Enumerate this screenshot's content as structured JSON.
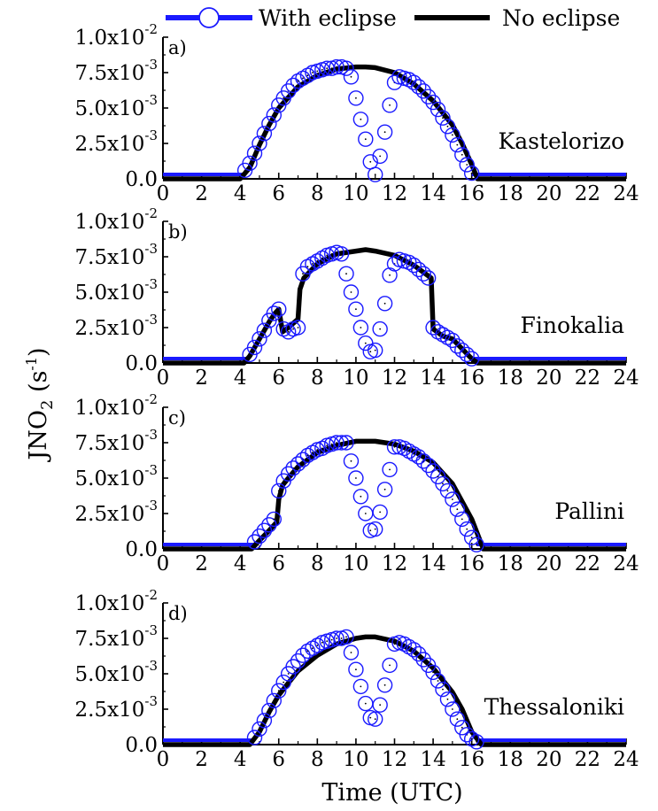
{
  "legend": {
    "items": [
      {
        "label": "With eclipse",
        "color": "#1a1aff",
        "marker": "open-circle"
      },
      {
        "label": "No eclipse",
        "color": "#000000",
        "marker": "none"
      }
    ],
    "placement": "top"
  },
  "axes": {
    "xlabel": "Time (UTC)",
    "ylabel_main": "JNO",
    "ylabel_sub": "2",
    "ylabel_unit_open": " (s",
    "ylabel_unit_exp": "-1",
    "ylabel_unit_close": ")",
    "xlim": [
      0,
      24
    ],
    "ylim": [
      0,
      0.01
    ],
    "xticks": [
      "0",
      "2",
      "4",
      "6",
      "8",
      "10",
      "12",
      "14",
      "16",
      "18",
      "20",
      "22",
      "24"
    ],
    "yticks": [
      {
        "value": 0,
        "mantissa": "0.0",
        "exp": ""
      },
      {
        "value": 0.0025,
        "mantissa": "2.5x10",
        "exp": "-3"
      },
      {
        "value": 0.005,
        "mantissa": "5.0x10",
        "exp": "-3"
      },
      {
        "value": 0.0075,
        "mantissa": "7.5x10",
        "exp": "-3"
      },
      {
        "value": 0.01,
        "mantissa": "1.0x10",
        "exp": "-2"
      }
    ]
  },
  "chart_data": [
    {
      "type": "line",
      "panel": "a)",
      "site": "Kastelorizo",
      "xlim": [
        0,
        24
      ],
      "ylim": [
        0,
        0.01
      ],
      "series": [
        {
          "name": "No eclipse",
          "color": "#000000",
          "x": [
            0,
            4,
            4.5,
            5,
            5.5,
            6,
            7,
            8,
            9,
            10,
            10.5,
            11,
            12,
            13,
            14,
            15,
            15.5,
            16,
            16.3,
            24
          ],
          "y": [
            0,
            0,
            0.0008,
            0.0024,
            0.0038,
            0.005,
            0.0065,
            0.0073,
            0.00775,
            0.0079,
            0.0079,
            0.00785,
            0.0075,
            0.0067,
            0.0055,
            0.0038,
            0.0025,
            0.001,
            0,
            0
          ]
        },
        {
          "name": "With eclipse",
          "color": "#1a1aff",
          "x": [
            4.25,
            4.5,
            4.75,
            5,
            5.25,
            5.5,
            5.75,
            6,
            6.25,
            6.5,
            6.75,
            7,
            7.25,
            7.5,
            7.75,
            8,
            8.25,
            8.5,
            8.75,
            9,
            9.25,
            9.5,
            9.75,
            10,
            10.25,
            10.5,
            10.75,
            11,
            11.25,
            11.5,
            11.75,
            12,
            12.25,
            12.5,
            12.75,
            13,
            13.25,
            13.5,
            13.75,
            14,
            14.25,
            14.5,
            14.75,
            15,
            15.25,
            15.5,
            15.75,
            16
          ],
          "y": [
            0.0006,
            0.0011,
            0.0018,
            0.0025,
            0.0032,
            0.0039,
            0.0045,
            0.0052,
            0.0057,
            0.0062,
            0.0066,
            0.0069,
            0.0071,
            0.0073,
            0.0075,
            0.0076,
            0.0077,
            0.0078,
            0.0078,
            0.0079,
            0.0079,
            0.0078,
            0.0072,
            0.0057,
            0.0042,
            0.0028,
            0.0012,
            0.0003,
            0.0016,
            0.0033,
            0.0052,
            0.0068,
            0.0072,
            0.0071,
            0.007,
            0.0068,
            0.0065,
            0.0062,
            0.0058,
            0.0054,
            0.0049,
            0.0043,
            0.0037,
            0.0031,
            0.0024,
            0.0017,
            0.001,
            0.0004
          ]
        }
      ]
    },
    {
      "type": "line",
      "panel": "b)",
      "site": "Finokalia",
      "xlim": [
        0,
        24
      ],
      "ylim": [
        0,
        0.01
      ],
      "series": [
        {
          "name": "No eclipse",
          "color": "#000000",
          "x": [
            0,
            4.2,
            4.5,
            5,
            5.5,
            5.8,
            6,
            6.2,
            6.5,
            7,
            7.1,
            7.3,
            8,
            9,
            10,
            10.5,
            11,
            12,
            13,
            13.9,
            14,
            14.2,
            14.5,
            15,
            15.5,
            16,
            16.3,
            24
          ],
          "y": [
            0,
            0,
            0.0005,
            0.0017,
            0.0029,
            0.0035,
            0.0038,
            0.0022,
            0.0025,
            0.0031,
            0.0052,
            0.006,
            0.007,
            0.0077,
            0.0079,
            0.008,
            0.0079,
            0.0076,
            0.0069,
            0.006,
            0.0024,
            0.0022,
            0.0019,
            0.0017,
            0.001,
            0.0003,
            0,
            0
          ]
        },
        {
          "name": "With eclipse",
          "color": "#1a1aff",
          "x": [
            4.5,
            4.75,
            5,
            5.25,
            5.5,
            5.75,
            6,
            6.25,
            6.5,
            6.75,
            7,
            7.25,
            7.5,
            7.75,
            8,
            8.25,
            8.5,
            8.75,
            9,
            9.25,
            9.5,
            9.75,
            10,
            10.25,
            10.5,
            10.75,
            11,
            11.25,
            11.5,
            11.75,
            12,
            12.25,
            12.5,
            12.75,
            13,
            13.25,
            13.5,
            13.75,
            14,
            14.25,
            14.5,
            14.75,
            15,
            15.25,
            15.5,
            15.75,
            16
          ],
          "y": [
            0.0006,
            0.0011,
            0.0017,
            0.0023,
            0.003,
            0.0035,
            0.0038,
            0.0024,
            0.0022,
            0.0024,
            0.0025,
            0.0063,
            0.0068,
            0.007,
            0.0072,
            0.0074,
            0.0076,
            0.0077,
            0.0078,
            0.0077,
            0.0063,
            0.005,
            0.0038,
            0.0025,
            0.0014,
            0.0008,
            0.0009,
            0.0024,
            0.0042,
            0.0062,
            0.007,
            0.0073,
            0.0072,
            0.0071,
            0.0069,
            0.0066,
            0.0063,
            0.006,
            0.0025,
            0.0022,
            0.002,
            0.0018,
            0.0016,
            0.0012,
            0.0009,
            0.0006,
            0.0003
          ]
        }
      ]
    },
    {
      "type": "line",
      "panel": "c)",
      "site": "Pallini",
      "xlim": [
        0,
        24
      ],
      "ylim": [
        0,
        0.01
      ],
      "series": [
        {
          "name": "No eclipse",
          "color": "#000000",
          "x": [
            0,
            4.6,
            5,
            5.5,
            5.9,
            6,
            6.2,
            6.5,
            7,
            8,
            9,
            10,
            10.5,
            11,
            12,
            13,
            14,
            15,
            16,
            16.6,
            24
          ],
          "y": [
            0,
            0,
            0.0006,
            0.0013,
            0.0019,
            0.0035,
            0.0045,
            0.005,
            0.0058,
            0.0068,
            0.0073,
            0.0076,
            0.0076,
            0.0076,
            0.0074,
            0.0069,
            0.0061,
            0.0046,
            0.0021,
            0,
            0
          ]
        },
        {
          "name": "With eclipse",
          "color": "#1a1aff",
          "x": [
            4.75,
            5,
            5.25,
            5.5,
            5.75,
            6,
            6.25,
            6.5,
            6.75,
            7,
            7.25,
            7.5,
            7.75,
            8,
            8.25,
            8.5,
            8.75,
            9,
            9.25,
            9.5,
            9.75,
            10,
            10.25,
            10.5,
            10.75,
            11,
            11.25,
            11.5,
            11.75,
            12,
            12.25,
            12.5,
            12.75,
            13,
            13.25,
            13.5,
            13.75,
            14,
            14.25,
            14.5,
            14.75,
            15,
            15.25,
            15.5,
            15.75,
            16,
            16.25
          ],
          "y": [
            0.0005,
            0.0009,
            0.0013,
            0.0017,
            0.0021,
            0.0041,
            0.0048,
            0.0053,
            0.0057,
            0.006,
            0.0063,
            0.0066,
            0.0068,
            0.007,
            0.0071,
            0.0073,
            0.0074,
            0.0075,
            0.0075,
            0.0075,
            0.0062,
            0.005,
            0.0037,
            0.0025,
            0.0013,
            0.0014,
            0.0026,
            0.0042,
            0.0056,
            0.0072,
            0.0072,
            0.0071,
            0.0069,
            0.0067,
            0.0065,
            0.0062,
            0.0059,
            0.0055,
            0.0051,
            0.0046,
            0.0041,
            0.0035,
            0.0028,
            0.0021,
            0.0014,
            0.0008,
            0.0003
          ]
        }
      ]
    },
    {
      "type": "line",
      "panel": "d)",
      "site": "Thessaloniki",
      "xlim": [
        0,
        24
      ],
      "ylim": [
        0,
        0.01
      ],
      "series": [
        {
          "name": "No eclipse",
          "color": "#000000",
          "x": [
            0,
            4.5,
            5,
            5.5,
            6,
            7,
            8,
            9,
            10,
            10.5,
            11,
            12,
            13,
            14,
            15,
            15.5,
            16,
            16.5,
            24
          ],
          "y": [
            0,
            0,
            0.0009,
            0.0023,
            0.0035,
            0.0052,
            0.0063,
            0.0071,
            0.0075,
            0.0076,
            0.0076,
            0.0073,
            0.0066,
            0.0054,
            0.0037,
            0.0025,
            0.0009,
            0,
            0
          ]
        },
        {
          "name": "With eclipse",
          "color": "#1a1aff",
          "x": [
            4.75,
            5,
            5.25,
            5.5,
            5.75,
            6,
            6.25,
            6.5,
            6.75,
            7,
            7.25,
            7.5,
            7.75,
            8,
            8.25,
            8.5,
            8.75,
            9,
            9.25,
            9.5,
            9.75,
            10,
            10.25,
            10.5,
            10.75,
            11,
            11.25,
            11.5,
            11.75,
            12,
            12.25,
            12.5,
            12.75,
            13,
            13.25,
            13.5,
            13.75,
            14,
            14.25,
            14.5,
            14.75,
            15,
            15.25,
            15.5,
            15.75,
            16,
            16.25
          ],
          "y": [
            0.0005,
            0.0011,
            0.0017,
            0.0024,
            0.0031,
            0.0038,
            0.0044,
            0.005,
            0.0055,
            0.0059,
            0.0063,
            0.0066,
            0.0068,
            0.007,
            0.0072,
            0.0073,
            0.0074,
            0.0075,
            0.0075,
            0.0076,
            0.0065,
            0.0053,
            0.0041,
            0.0029,
            0.0019,
            0.0018,
            0.0028,
            0.0042,
            0.0056,
            0.0071,
            0.0072,
            0.0071,
            0.0069,
            0.0067,
            0.0064,
            0.006,
            0.0056,
            0.0051,
            0.0045,
            0.0039,
            0.0032,
            0.0025,
            0.0018,
            0.0012,
            0.0007,
            0.0004,
            0.0002
          ]
        }
      ]
    }
  ]
}
